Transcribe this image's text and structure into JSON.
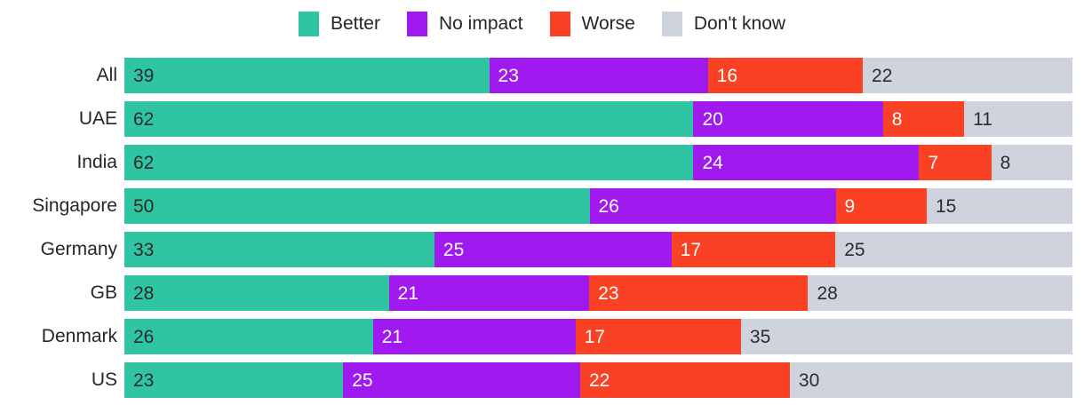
{
  "colors": {
    "better": "#2fc5a2",
    "no_impact": "#a01af0",
    "worse": "#fb4123",
    "dont_know": "#ced3dd",
    "text_dark": "#2b2b2b",
    "text_light": "#ffffff",
    "background": "#ffffff"
  },
  "legend": {
    "position": "top-center",
    "items": [
      {
        "label": "Better",
        "color_key": "better"
      },
      {
        "label": "No impact",
        "color_key": "no_impact"
      },
      {
        "label": "Worse",
        "color_key": "worse"
      },
      {
        "label": "Don't know",
        "color_key": "dont_know"
      }
    ]
  },
  "chart_data": {
    "type": "bar",
    "orientation": "horizontal",
    "stacked": true,
    "normalized_to_100": true,
    "title": "",
    "xlabel": "",
    "ylabel": "",
    "axes_visible": false,
    "grid": false,
    "legend_position": "top",
    "value_labels": "inside-segment-start",
    "categories": [
      "All",
      "UAE",
      "India",
      "Singapore",
      "Germany",
      "GB",
      "Denmark",
      "US"
    ],
    "series": [
      {
        "name": "Better",
        "color_key": "better",
        "label_color_key": "text_dark",
        "values": [
          39,
          62,
          62,
          50,
          33,
          28,
          26,
          23
        ]
      },
      {
        "name": "No impact",
        "color_key": "no_impact",
        "label_color_key": "text_light",
        "values": [
          23,
          20,
          24,
          26,
          25,
          21,
          21,
          25
        ]
      },
      {
        "name": "Worse",
        "color_key": "worse",
        "label_color_key": "text_light",
        "values": [
          16,
          8,
          7,
          9,
          17,
          23,
          17,
          22
        ]
      },
      {
        "name": "Don't know",
        "color_key": "dont_know",
        "label_color_key": "text_dark",
        "values": [
          22,
          11,
          8,
          15,
          25,
          28,
          35,
          30
        ]
      }
    ]
  }
}
